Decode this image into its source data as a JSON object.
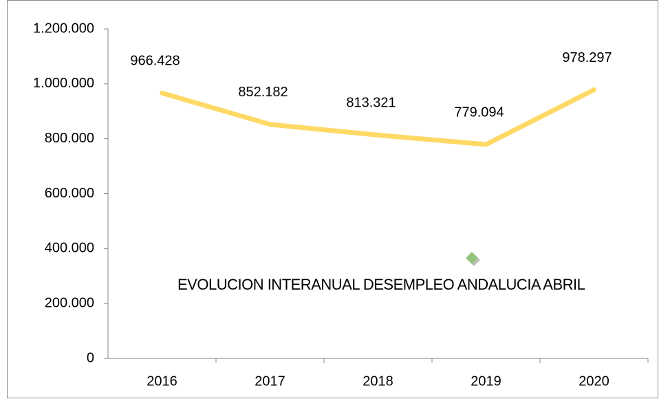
{
  "chart_data": {
    "type": "line",
    "categories": [
      "2016",
      "2017",
      "2018",
      "2019",
      "2020"
    ],
    "series": [
      {
        "name": "EVOLUCION INTERANUAL DESEMPLEO ANDALUCIA ABRIL",
        "color": "#ffd966",
        "values": [
          966428,
          852182,
          813321,
          779094,
          978297
        ],
        "value_labels": [
          "966.428",
          "852.182",
          "813.321",
          "779.094",
          "978.297"
        ]
      }
    ],
    "ylim": [
      0,
      1200000
    ],
    "yticks": [
      0,
      {
        "value": 200000,
        "label": "200.000"
      },
      {
        "value": 400000,
        "label": "400.000"
      },
      {
        "value": 600000,
        "label": "600.000"
      },
      {
        "value": 800000,
        "label": "800.000"
      },
      {
        "value": 1000000,
        "label": "1.000.000"
      },
      {
        "value": 1200000,
        "label": "1.200.000"
      }
    ],
    "grid": false
  }
}
